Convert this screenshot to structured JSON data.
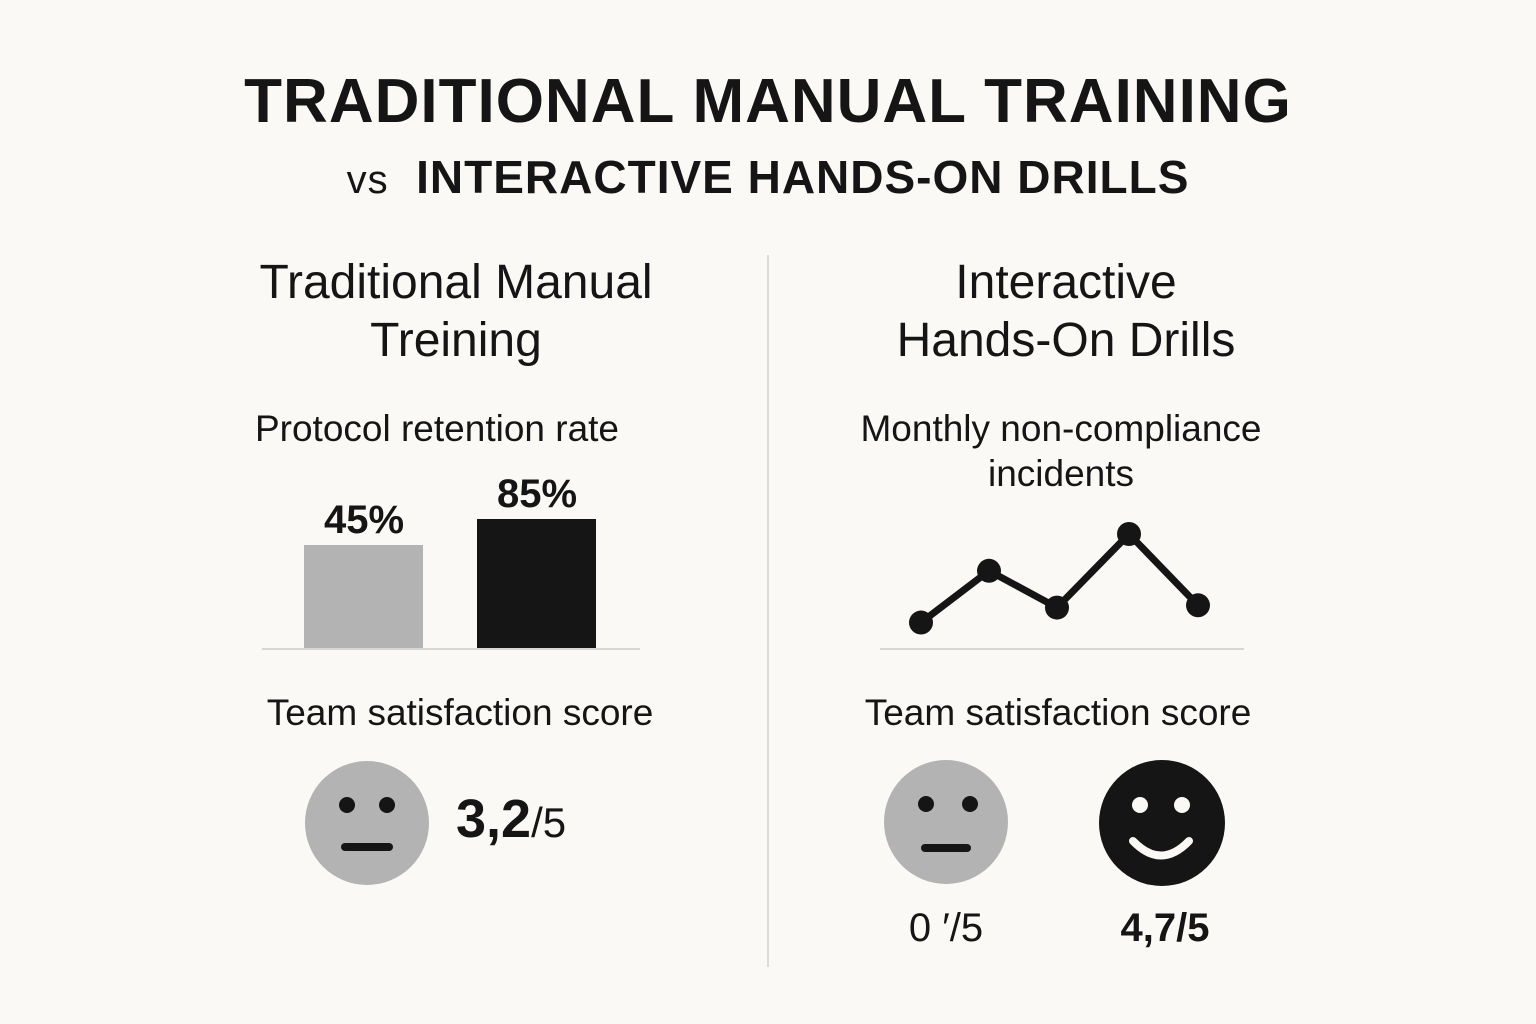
{
  "header": {
    "title": "TRADITIONAL MANUAL TRAINING",
    "subtitle_vs": "vs",
    "subtitle": "INTERACTIVE HANDS-ON DRILLS"
  },
  "left_panel": {
    "title_line1": "Traditional Manual",
    "title_line2": "Treining",
    "chart_label": "Protocol retention rate",
    "satisfaction_label": "Team satisfaction score",
    "satisfaction_value": "3,2",
    "satisfaction_suffix": "/5",
    "face_icon": "neutral-face-icon"
  },
  "right_panel": {
    "title_line1": "Interactive",
    "title_line2": "Hands-On Drills",
    "chart_label_line1": "Monthly non-compliance",
    "chart_label_line2": "incidents",
    "satisfaction_label": "Team satisfaction score",
    "scores": [
      {
        "icon": "neutral-face-icon",
        "value": "0 ′/5",
        "color": "#b3b3b3"
      },
      {
        "icon": "smiley-face-icon",
        "value": "4,7/5",
        "color": "#151515"
      }
    ]
  },
  "chart_data": [
    {
      "type": "bar",
      "title": "Protocol retention rate",
      "categories": [
        "",
        ""
      ],
      "values": [
        45,
        85
      ],
      "data_labels": [
        "45%",
        "85%"
      ],
      "colors": [
        "#b3b3b3",
        "#151515"
      ],
      "grid": false
    },
    {
      "type": "line",
      "title": "Monthly non-compliance incidents",
      "x": [
        1,
        2,
        3,
        4,
        5
      ],
      "values": [
        0.23,
        0.68,
        0.36,
        1.0,
        0.38
      ],
      "color": "#151515",
      "grid": false
    }
  ]
}
